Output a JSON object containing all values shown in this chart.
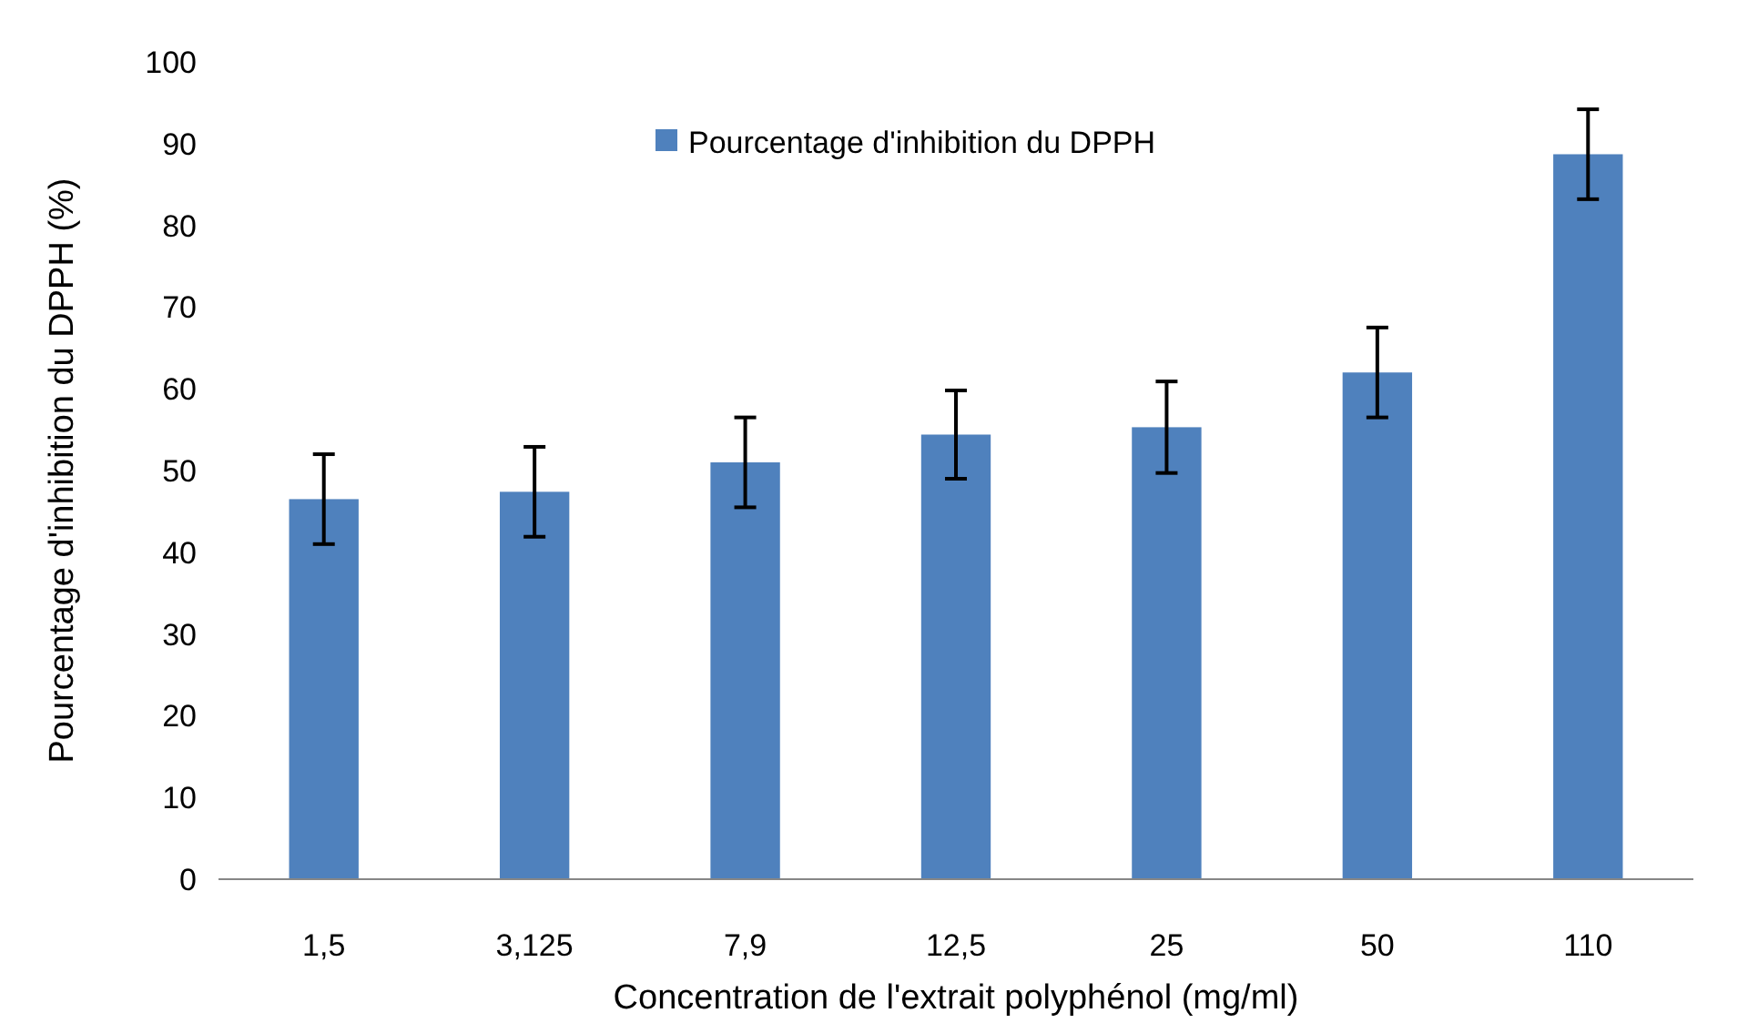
{
  "chart_data": {
    "type": "bar",
    "xlabel": "Concentration de l'extrait polyphénol (mg/ml)",
    "ylabel": "Pourcentage d'inhibition du DPPH (%)",
    "categories": [
      "1,5",
      "3,125",
      "7,9",
      "12,5",
      "25",
      "50",
      "110"
    ],
    "series": [
      {
        "name": "Pourcentage d'inhibition du DPPH",
        "color": "#4f81bd",
        "values": [
          46.5,
          47.4,
          51,
          54.4,
          55.3,
          62,
          88.7
        ],
        "errors": [
          5.5,
          5.5,
          5.5,
          5.4,
          5.6,
          5.5,
          5.5
        ]
      }
    ],
    "ylim": [
      0,
      100
    ],
    "yticks": [
      0,
      10,
      20,
      30,
      40,
      50,
      60,
      70,
      80,
      90,
      100
    ],
    "grid": false,
    "legend": "top"
  }
}
